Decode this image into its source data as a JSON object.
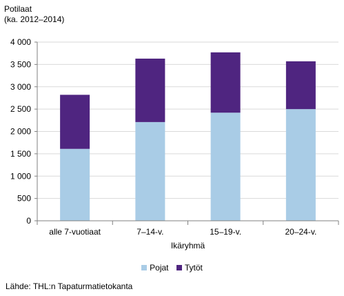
{
  "chart_data": {
    "type": "bar",
    "stacked": true,
    "ylabel_line1": "Potilaat",
    "ylabel_line2": "(ka. 2012–2014)",
    "xlabel": "Ikäryhmä",
    "categories": [
      "alle 7-vuotiaat",
      "7–14-v.",
      "15–19-v.",
      "20–24-v."
    ],
    "series": [
      {
        "name": "Pojat",
        "color": "#a9cce6",
        "values": [
          1610,
          2210,
          2420,
          2500
        ]
      },
      {
        "name": "Tytöt",
        "color": "#4f2580",
        "values": [
          1210,
          1420,
          1350,
          1070
        ]
      }
    ],
    "ylim": [
      0,
      4000
    ],
    "yticks": [
      0,
      500,
      1000,
      1500,
      2000,
      2500,
      3000,
      3500,
      4000
    ],
    "ytick_labels": [
      "0",
      "500",
      "1 000",
      "1 500",
      "2 000",
      "2 500",
      "3 000",
      "3 500",
      "4 000"
    ],
    "grid": true,
    "legend_position": "bottom"
  },
  "source": "Lähde: THL:n Tapaturmatietokanta"
}
